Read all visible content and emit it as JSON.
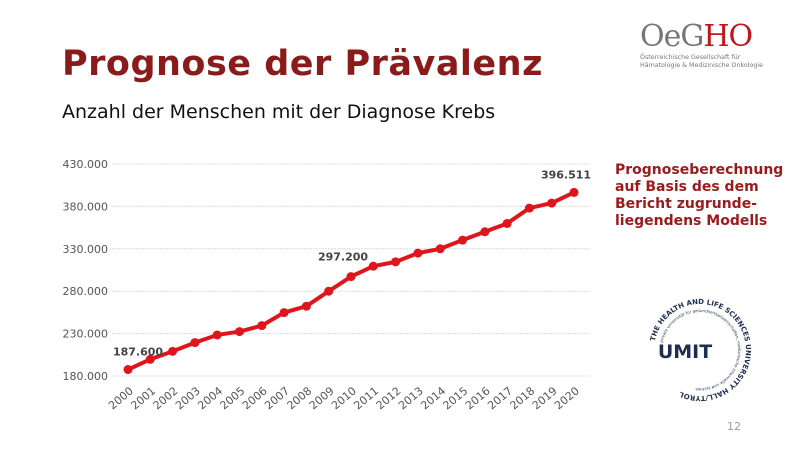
{
  "slide": {
    "title": "Prognose der Prävalenz",
    "subtitle": "Anzahl der Menschen mit der Diagnose Krebs",
    "note": "Prognoseberechnung auf Basis des dem Bericht zugrunde-liegendens Modells",
    "page_number": "12",
    "accent_color": "#8b1a1a",
    "line_color": "#e0141b"
  },
  "logos": {
    "oegho": {
      "name_grey": "Oe",
      "name_g": "G",
      "name_red": "HO",
      "line1": "Österreichische Gesellschaft für",
      "line2": "Hämatologie & Medizinische Onkologie"
    },
    "umit": {
      "name": "UMIT",
      "ring_text": "THE HEALTH AND LIFE SCIENCES UNIVERSITY HALL/TYROL",
      "inner_text": "private universität für gesundheitswissenschaften, medizinische informatik und technik"
    }
  },
  "chart_data": {
    "type": "line",
    "title": "Anzahl der Menschen mit der Diagnose Krebs",
    "xlabel": "",
    "ylabel": "",
    "categories": [
      "2000",
      "2001",
      "2002",
      "2003",
      "2004",
      "2005",
      "2006",
      "2007",
      "2008",
      "2009",
      "2010",
      "2011",
      "2012",
      "2013",
      "2014",
      "2015",
      "2016",
      "2017",
      "2018",
      "2019",
      "2020"
    ],
    "values": [
      187600,
      199700,
      209100,
      219400,
      228400,
      232400,
      239400,
      254800,
      262300,
      280000,
      297200,
      309500,
      314600,
      324900,
      330000,
      340200,
      350100,
      359900,
      378000,
      383900,
      396511
    ],
    "ylim": [
      180000,
      430000
    ],
    "yticks": [
      180000,
      230000,
      280000,
      330000,
      380000,
      430000
    ],
    "ytick_labels": [
      "180.000",
      "230.000",
      "280.000",
      "330.000",
      "380.000",
      "430.000"
    ],
    "data_labels": [
      {
        "index": 0,
        "text": "187.600"
      },
      {
        "index": 10,
        "text": "297.200"
      },
      {
        "index": 20,
        "text": "396.511"
      }
    ],
    "grid": true,
    "legend": "none"
  }
}
